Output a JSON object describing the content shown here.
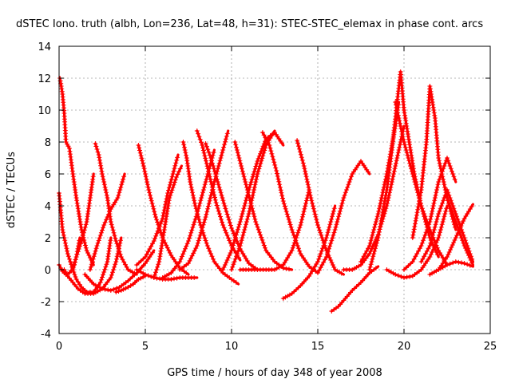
{
  "chart_data": {
    "type": "scatter",
    "title": "dSTEC Iono. truth (albh, Lon=236, Lat=48, h=31): STEC-STEC_elemax in phase cont. arcs",
    "xlabel": "GPS time / hours of day 348 of year 2008",
    "ylabel": "dSTEC  / TECUs",
    "xlim": [
      0,
      25
    ],
    "ylim": [
      -4,
      14
    ],
    "xticks": [
      0,
      5,
      10,
      15,
      20,
      25
    ],
    "yticks": [
      -4,
      -2,
      0,
      2,
      4,
      6,
      8,
      10,
      12,
      14
    ],
    "grid": true,
    "marker": "plus",
    "color": "#ff0000",
    "series": [
      {
        "x": [
          0.0,
          0.1,
          0.2,
          0.3,
          0.4,
          0.6,
          0.8,
          1.0,
          1.2
        ],
        "y": [
          0.3,
          0.1,
          -0.1,
          -0.2,
          -0.3,
          -0.2,
          0.1,
          0.8,
          2.0
        ]
      },
      {
        "x": [
          0.0,
          0.2,
          0.5,
          0.8,
          1.0,
          1.3,
          1.6,
          2.0,
          2.4,
          2.8,
          3.0
        ],
        "y": [
          4.8,
          2.5,
          1.0,
          0.0,
          -0.6,
          -1.1,
          -1.4,
          -1.4,
          -0.8,
          0.5,
          2.0
        ]
      },
      {
        "x": [
          0.05,
          0.2,
          0.3,
          0.4,
          0.6,
          0.8,
          1.0,
          1.3,
          1.6,
          2.0
        ],
        "y": [
          12.0,
          11.0,
          9.8,
          8.0,
          7.6,
          6.0,
          4.5,
          2.5,
          1.2,
          0.3
        ]
      },
      {
        "x": [
          0.3,
          0.5,
          0.8,
          1.1,
          1.5,
          2.0,
          2.5,
          3.0,
          3.3,
          3.6
        ],
        "y": [
          0.0,
          -0.4,
          -0.8,
          -1.2,
          -1.5,
          -1.5,
          -1.2,
          -0.5,
          0.5,
          2.0
        ]
      },
      {
        "x": [
          0.8,
          1.0,
          1.3,
          1.6,
          1.8,
          2.0
        ],
        "y": [
          0.0,
          0.8,
          1.8,
          3.0,
          4.5,
          6.0
        ]
      },
      {
        "x": [
          2.1,
          2.3,
          2.5,
          2.8,
          3.0,
          3.3,
          3.6,
          4.0,
          4.5
        ],
        "y": [
          7.9,
          7.2,
          6.0,
          4.5,
          3.0,
          1.8,
          0.8,
          0.0,
          -0.3
        ]
      },
      {
        "x": [
          1.5,
          2.0,
          2.5,
          3.0,
          3.5,
          4.0,
          4.5,
          5.0,
          5.5
        ],
        "y": [
          -0.3,
          -0.9,
          -1.2,
          -1.3,
          -1.1,
          -0.7,
          -0.2,
          0.4,
          1.2
        ]
      },
      {
        "x": [
          1.8,
          2.2,
          2.6,
          3.0,
          3.4,
          3.8
        ],
        "y": [
          0.0,
          1.5,
          2.8,
          3.8,
          4.5,
          6.0
        ]
      },
      {
        "x": [
          3.3,
          3.6,
          4.0,
          4.3,
          4.6,
          5.0
        ],
        "y": [
          -1.4,
          -1.3,
          -1.1,
          -0.9,
          -0.6,
          -0.4
        ]
      },
      {
        "x": [
          4.6,
          4.9,
          5.2,
          5.6,
          6.0,
          6.5,
          7.0,
          7.5
        ],
        "y": [
          7.8,
          6.5,
          5.0,
          3.3,
          2.0,
          0.9,
          0.1,
          -0.3
        ]
      },
      {
        "x": [
          4.5,
          5.0,
          5.5,
          6.0,
          6.5,
          7.0,
          7.5,
          8.0
        ],
        "y": [
          0.0,
          -0.3,
          -0.5,
          -0.6,
          -0.6,
          -0.5,
          -0.5,
          -0.5
        ]
      },
      {
        "x": [
          4.5,
          5.0,
          5.5,
          6.0,
          6.3,
          6.6,
          6.9
        ],
        "y": [
          0.3,
          0.8,
          1.8,
          3.2,
          4.8,
          6.0,
          7.2
        ]
      },
      {
        "x": [
          5.5,
          5.8,
          6.1,
          6.4,
          6.8,
          7.1
        ],
        "y": [
          -0.5,
          0.5,
          2.5,
          4.5,
          5.8,
          6.5
        ]
      },
      {
        "x": [
          7.2,
          7.4,
          7.6,
          7.9,
          8.2,
          8.6,
          9.0,
          9.5,
          10.0,
          10.4
        ],
        "y": [
          8.0,
          7.0,
          5.5,
          4.0,
          2.8,
          1.5,
          0.5,
          -0.2,
          -0.6,
          -0.9
        ]
      },
      {
        "x": [
          8.0,
          8.3,
          8.7,
          9.1,
          9.5,
          10.0,
          10.5
        ],
        "y": [
          8.7,
          7.8,
          6.0,
          4.2,
          2.8,
          1.5,
          0.6
        ]
      },
      {
        "x": [
          6.0,
          6.5,
          7.0,
          7.5,
          8.0,
          8.5,
          9.0
        ],
        "y": [
          -0.5,
          -0.2,
          0.5,
          1.8,
          3.5,
          5.5,
          7.5
        ]
      },
      {
        "x": [
          7.0,
          7.5,
          8.0,
          8.5,
          9.0,
          9.5,
          9.8
        ],
        "y": [
          0.0,
          0.4,
          1.5,
          3.3,
          5.5,
          7.5,
          8.7
        ]
      },
      {
        "x": [
          8.5,
          8.8,
          9.2,
          9.6,
          10.0,
          10.5,
          11.0,
          11.5
        ],
        "y": [
          7.9,
          7.0,
          5.5,
          4.0,
          2.6,
          1.3,
          0.4,
          0.0
        ]
      },
      {
        "x": [
          9.5,
          10.0,
          10.5,
          11.0,
          11.5,
          12.0,
          12.5,
          13.0
        ],
        "y": [
          0.0,
          1.2,
          3.0,
          5.0,
          6.8,
          8.2,
          8.6,
          7.8
        ]
      },
      {
        "x": [
          10.0,
          10.5,
          11.0,
          11.5,
          12.0,
          12.5
        ],
        "y": [
          0.0,
          1.5,
          3.5,
          6.0,
          7.8,
          8.7
        ]
      },
      {
        "x": [
          10.2,
          10.8,
          11.4,
          12.0,
          12.5,
          13.0,
          13.5
        ],
        "y": [
          8.0,
          5.5,
          3.0,
          1.2,
          0.5,
          0.1,
          0.0
        ]
      },
      {
        "x": [
          11.8,
          12.2,
          12.6,
          13.0,
          13.5,
          14.0,
          14.5,
          15.0
        ],
        "y": [
          8.6,
          7.8,
          6.2,
          4.3,
          2.5,
          1.0,
          0.2,
          -0.2
        ]
      },
      {
        "x": [
          10.5,
          11.5,
          12.5,
          13.0,
          13.5,
          14.0,
          14.5
        ],
        "y": [
          0.0,
          0.0,
          0.0,
          0.3,
          1.2,
          2.8,
          5.0
        ]
      },
      {
        "x": [
          13.0,
          13.5,
          14.0,
          14.5,
          15.0,
          15.5,
          16.0
        ],
        "y": [
          -1.8,
          -1.5,
          -1.0,
          -0.4,
          0.5,
          2.0,
          4.0
        ]
      },
      {
        "x": [
          13.8,
          14.2,
          14.6,
          15.0,
          15.5,
          16.0,
          16.5
        ],
        "y": [
          8.1,
          6.5,
          4.5,
          2.8,
          1.2,
          0.0,
          -0.3
        ]
      },
      {
        "x": [
          15.0,
          15.5,
          16.0,
          16.5,
          17.0,
          17.5,
          18.0
        ],
        "y": [
          -0.2,
          0.8,
          2.5,
          4.5,
          6.0,
          6.8,
          6.0
        ]
      },
      {
        "x": [
          15.8,
          16.2,
          16.6,
          17.0,
          17.5,
          18.0,
          18.5
        ],
        "y": [
          -2.6,
          -2.3,
          -1.8,
          -1.3,
          -0.8,
          -0.2,
          0.2
        ]
      },
      {
        "x": [
          16.5,
          17.0,
          17.5,
          18.0,
          18.5,
          19.0,
          19.5,
          20.0
        ],
        "y": [
          0.0,
          0.0,
          0.3,
          1.0,
          2.2,
          4.0,
          6.5,
          9.0
        ]
      },
      {
        "x": [
          17.5,
          18.0,
          18.5,
          19.0,
          19.5,
          19.7
        ],
        "y": [
          0.5,
          1.5,
          3.5,
          6.0,
          9.0,
          10.5
        ]
      },
      {
        "x": [
          18.0,
          18.5,
          19.0,
          19.3,
          19.6,
          19.8
        ],
        "y": [
          0.0,
          2.0,
          5.0,
          7.5,
          10.5,
          12.4
        ]
      },
      {
        "x": [
          19.8,
          20.0,
          20.3,
          20.6,
          21.0,
          21.5,
          22.0
        ],
        "y": [
          12.4,
          10.0,
          8.0,
          6.0,
          4.0,
          2.0,
          0.8
        ]
      },
      {
        "x": [
          19.5,
          20.0,
          20.5,
          21.0,
          21.5,
          22.0,
          22.5
        ],
        "y": [
          10.5,
          8.0,
          6.0,
          4.0,
          2.5,
          1.2,
          0.3
        ]
      },
      {
        "x": [
          19.0,
          19.5,
          20.0,
          20.5,
          21.0,
          21.5,
          22.0,
          22.5
        ],
        "y": [
          0.0,
          -0.3,
          -0.5,
          -0.4,
          0.0,
          0.8,
          2.0,
          4.0
        ]
      },
      {
        "x": [
          20.5,
          21.0,
          21.3,
          21.5,
          21.8,
          22.0,
          22.5,
          23.0
        ],
        "y": [
          2.0,
          5.0,
          8.0,
          11.5,
          9.5,
          7.0,
          4.5,
          2.5
        ]
      },
      {
        "x": [
          21.0,
          21.5,
          22.0,
          22.5,
          23.0,
          23.5,
          24.0
        ],
        "y": [
          0.5,
          1.5,
          3.5,
          5.0,
          3.5,
          2.0,
          0.5
        ]
      },
      {
        "x": [
          21.5,
          22.0,
          22.5,
          23.0,
          23.5,
          24.0
        ],
        "y": [
          -0.3,
          0.0,
          0.3,
          0.5,
          0.4,
          0.2
        ]
      },
      {
        "x": [
          22.5,
          23.0,
          23.5,
          24.0
        ],
        "y": [
          4.5,
          3.0,
          1.5,
          0.3
        ]
      },
      {
        "x": [
          22.0,
          22.5,
          23.0,
          23.5,
          24.0
        ],
        "y": [
          0.0,
          0.8,
          2.0,
          3.2,
          4.1
        ]
      },
      {
        "x": [
          20.0,
          20.5,
          21.0,
          21.5,
          22.0,
          22.5,
          23.0
        ],
        "y": [
          0.0,
          0.5,
          1.5,
          3.0,
          5.5,
          7.0,
          5.5
        ]
      }
    ]
  }
}
